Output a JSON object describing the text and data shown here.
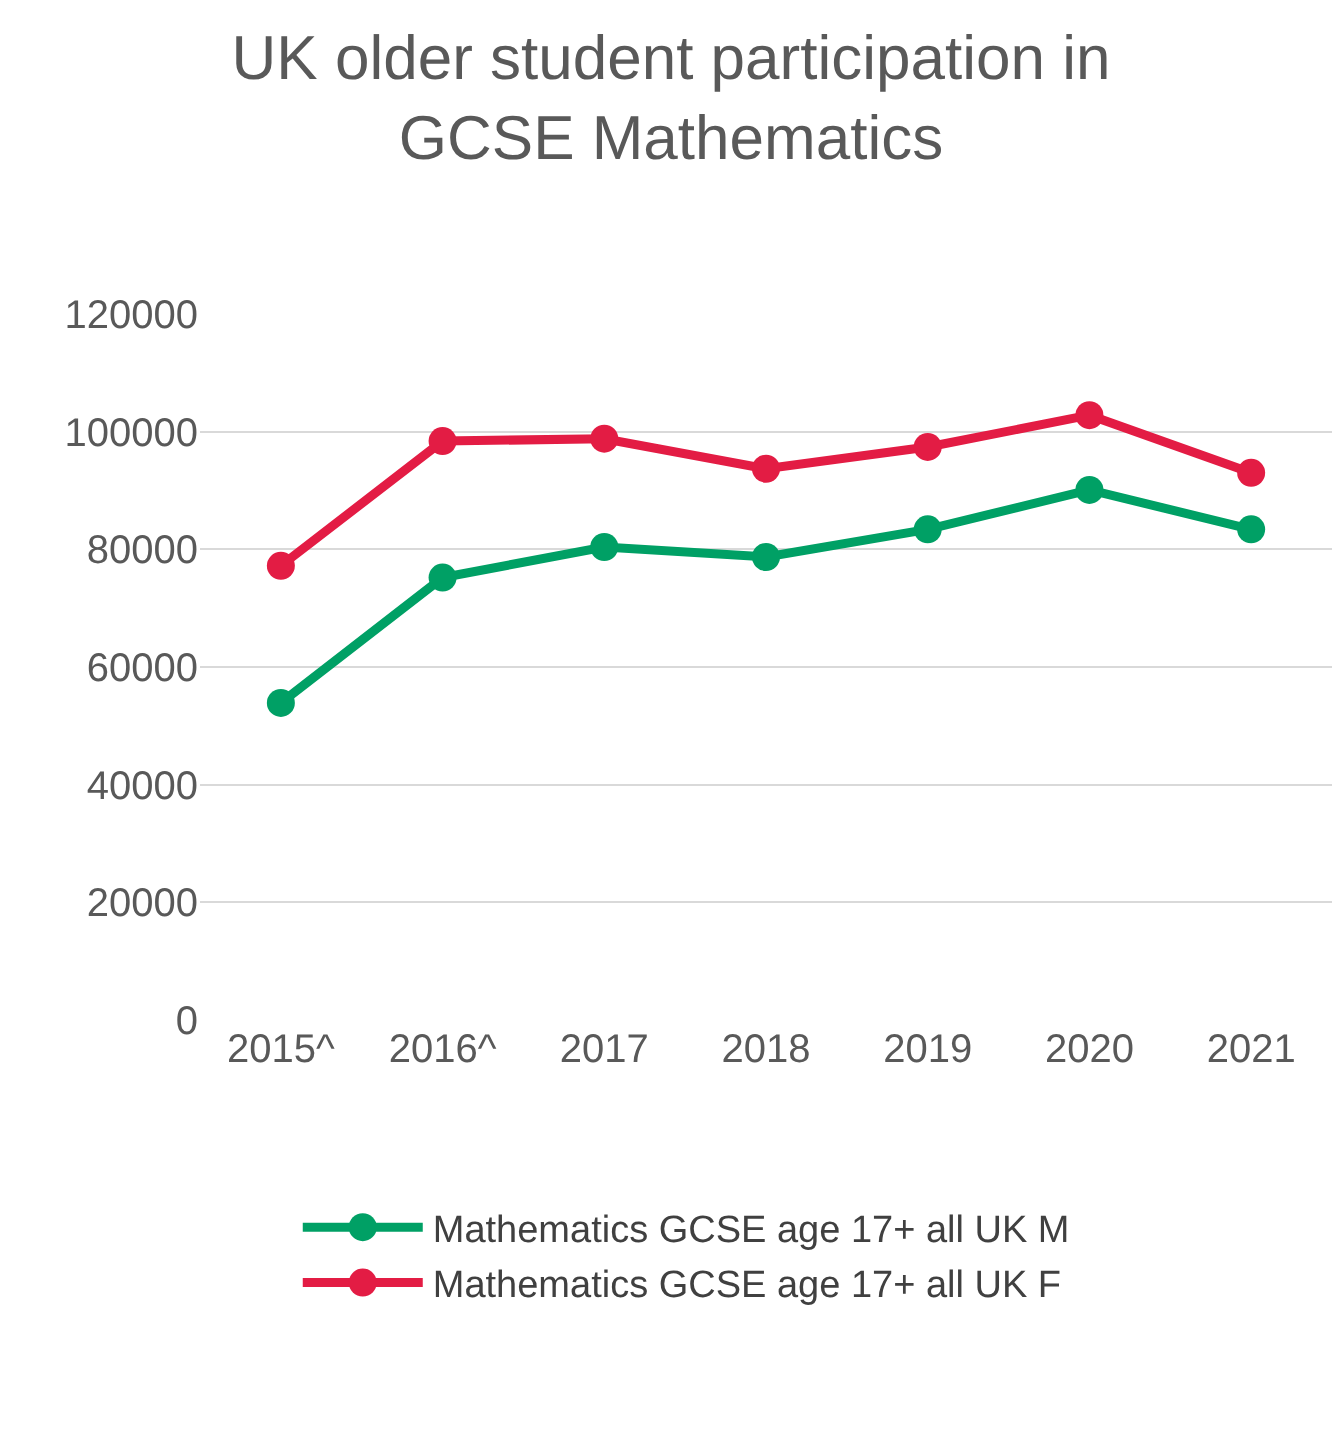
{
  "chart_data": {
    "type": "line",
    "title": "UK older student participation in\nGCSE Mathematics",
    "categories": [
      "2015^",
      "2016^",
      "2017",
      "2018",
      "2019",
      "2020",
      "2021"
    ],
    "series": [
      {
        "name": "Mathematics GCSE age 17+ all UK M",
        "color": "#00a065",
        "values": [
          53900,
          75200,
          80400,
          78700,
          83400,
          90100,
          83400
        ]
      },
      {
        "name": "Mathematics GCSE age 17+ all UK F",
        "color": "#e31c44",
        "values": [
          77200,
          98400,
          98800,
          93700,
          97400,
          102800,
          93000
        ]
      }
    ],
    "ylim": [
      0,
      120000
    ],
    "yticks": [
      0,
      20000,
      40000,
      60000,
      80000,
      100000,
      120000
    ],
    "grid": "y",
    "legend": "bottom",
    "marker": "circle",
    "line_style": "solid"
  }
}
